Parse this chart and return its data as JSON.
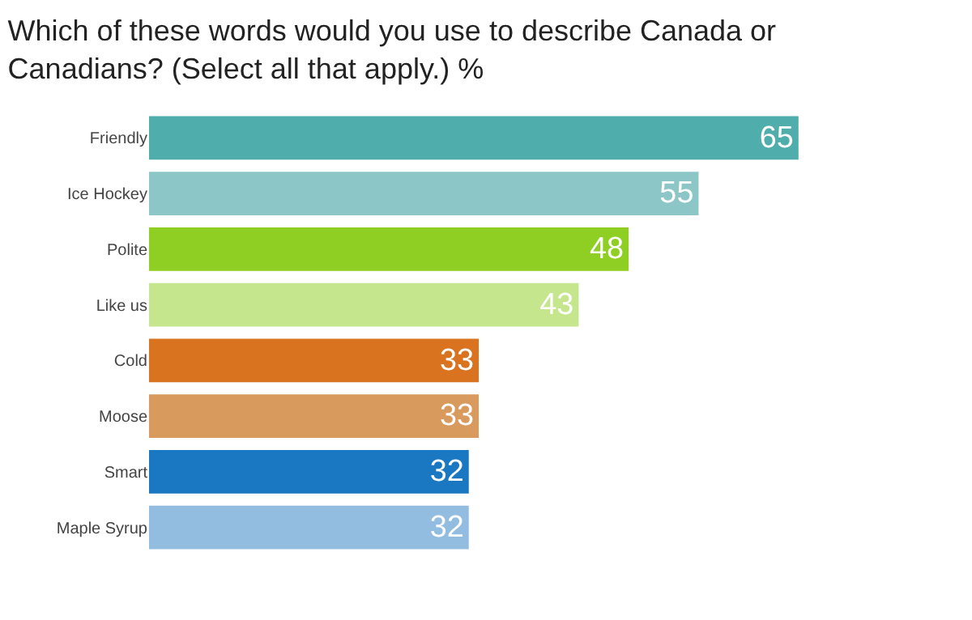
{
  "chart_data": {
    "type": "bar",
    "orientation": "horizontal",
    "title": "Which of these words would you use to describe Canada or Canadians? (Select all that apply.) %",
    "categories": [
      "Friendly",
      "Ice Hockey",
      "Polite",
      "Like us",
      "Cold",
      "Moose",
      "Smart",
      "Maple Syrup"
    ],
    "values": [
      65,
      55,
      48,
      43,
      33,
      33,
      32,
      32
    ],
    "colors": [
      "#4fadac",
      "#8cc6c6",
      "#8fce23",
      "#c6e68e",
      "#d9731f",
      "#d99a5e",
      "#1a78c2",
      "#93bde0"
    ],
    "data_labels": true
  }
}
